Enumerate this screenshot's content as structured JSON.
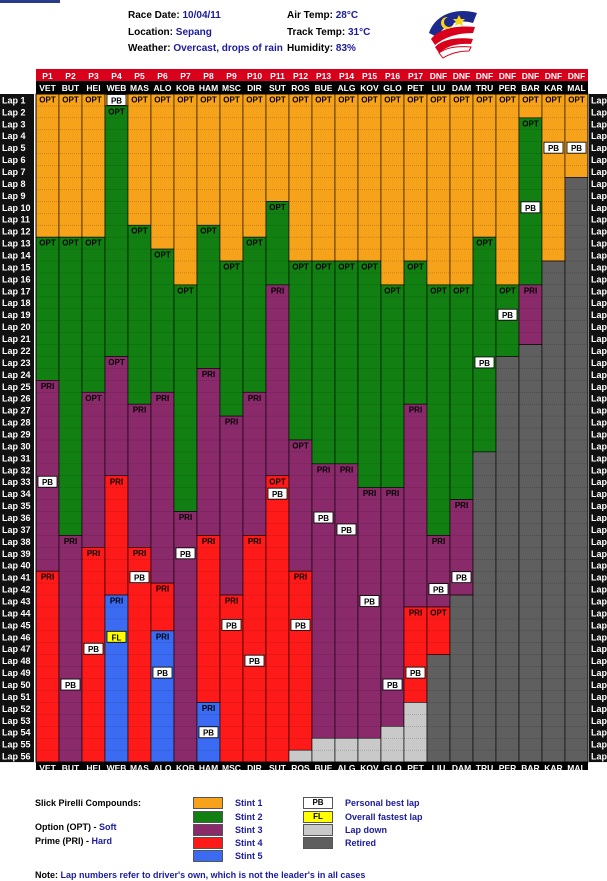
{
  "header": {
    "race_date_label": "Race Date:",
    "race_date": "10/04/11",
    "location_label": "Location:",
    "location": "Sepang",
    "weather_label": "Weather:",
    "weather": "Overcast, drops of rain",
    "air_temp_label": "Air Temp:",
    "air_temp": "28°C",
    "track_temp_label": "Track Temp:",
    "track_temp": "31°C",
    "humidity_label": "Humidity:",
    "humidity": "83%"
  },
  "legend": {
    "compounds_title": "Slick Pirelli Compounds:",
    "option_label": "Option (OPT) - ",
    "option_value": "Soft",
    "prime_label": "Prime (PRI) - ",
    "prime_value": "Hard",
    "stints": [
      "Stint 1",
      "Stint 2",
      "Stint 3",
      "Stint 4",
      "Stint 5"
    ],
    "markers": [
      {
        "badge": "PB",
        "label": "Personal best lap"
      },
      {
        "badge": "FL",
        "label": "Overall fastest lap"
      },
      {
        "badge": "",
        "label": "Lap down"
      },
      {
        "badge": "",
        "label": "Retired"
      }
    ]
  },
  "note": {
    "label": "Note: ",
    "text": "Lap numbers refer to driver's own, which is not the leader's in all cases"
  },
  "colors": {
    "stint1": "#f7a21b",
    "stint2": "#127f12",
    "stint3": "#8a2a6a",
    "stint4": "#ff1a1a",
    "stint5": "#3b6bf2",
    "lapdown": "#c9c9c9",
    "retired": "#5f5f5f",
    "header_bg": "#d9001b",
    "lap_col": "#111111"
  },
  "chart_data": {
    "type": "table",
    "title": "",
    "total_laps": 56,
    "lap_prefix": "Lap ",
    "positions": [
      "P1",
      "P2",
      "P3",
      "P4",
      "P5",
      "P6",
      "P7",
      "P8",
      "P9",
      "P10",
      "P11",
      "P12",
      "P13",
      "P14",
      "P15",
      "P16",
      "P17",
      "DNF",
      "DNF",
      "DNF",
      "DNF",
      "DNF",
      "DNF",
      "DNF"
    ],
    "drivers": [
      "VET",
      "BUT",
      "HEI",
      "WEB",
      "MAS",
      "ALO",
      "KOB",
      "HAM",
      "MSC",
      "DIR",
      "SUT",
      "ROS",
      "BUE",
      "ALG",
      "KOV",
      "GLO",
      "PET",
      "LIU",
      "DAM",
      "TRU",
      "PER",
      "BAR",
      "KAR",
      "MAL"
    ],
    "compound_labels": {
      "option": "OPT",
      "prime": "PRI"
    },
    "rows": [
      {
        "driver": "VET",
        "stints": [
          {
            "c": "OPT",
            "laps": [
              1,
              12
            ]
          },
          {
            "c": "OPT",
            "laps": [
              13,
              24
            ]
          },
          {
            "c": "PRI",
            "laps": [
              25,
              40
            ]
          },
          {
            "c": "PRI",
            "laps": [
              41,
              56
            ]
          }
        ],
        "pb": [
          33
        ],
        "fl": [],
        "lapdown": null,
        "retired": null
      },
      {
        "driver": "BUT",
        "stints": [
          {
            "c": "OPT",
            "laps": [
              1,
              12
            ]
          },
          {
            "c": "OPT",
            "laps": [
              13,
              37
            ]
          },
          {
            "c": "PRI",
            "laps": [
              38,
              56
            ]
          }
        ],
        "pb": [
          50
        ],
        "fl": [],
        "lapdown": null,
        "retired": null
      },
      {
        "driver": "HEI",
        "stints": [
          {
            "c": "OPT",
            "laps": [
              1,
              12
            ]
          },
          {
            "c": "OPT",
            "laps": [
              13,
              25
            ]
          },
          {
            "c": "OPT",
            "laps": [
              26,
              38
            ]
          },
          {
            "c": "PRI",
            "laps": [
              39,
              56
            ]
          }
        ],
        "pb": [
          47
        ],
        "fl": [],
        "lapdown": null,
        "retired": null
      },
      {
        "driver": "WEB",
        "stints": [
          {
            "c": "OPT",
            "laps": [
              1,
              1
            ]
          },
          {
            "c": "OPT",
            "laps": [
              2,
              22
            ]
          },
          {
            "c": "OPT",
            "laps": [
              23,
              32
            ]
          },
          {
            "c": "PRI",
            "laps": [
              33,
              42
            ]
          },
          {
            "c": "PRI",
            "laps": [
              43,
              56
            ]
          }
        ],
        "pb": [
          1
        ],
        "fl": [
          46
        ],
        "lapdown": null,
        "retired": null
      },
      {
        "driver": "MAS",
        "stints": [
          {
            "c": "OPT",
            "laps": [
              1,
              11
            ]
          },
          {
            "c": "OPT",
            "laps": [
              12,
              26
            ]
          },
          {
            "c": "PRI",
            "laps": [
              27,
              38
            ]
          },
          {
            "c": "PRI",
            "laps": [
              39,
              56
            ]
          }
        ],
        "pb": [
          41
        ],
        "fl": [],
        "lapdown": null,
        "retired": null
      },
      {
        "driver": "ALO",
        "stints": [
          {
            "c": "OPT",
            "laps": [
              1,
              13
            ]
          },
          {
            "c": "OPT",
            "laps": [
              14,
              25
            ]
          },
          {
            "c": "PRI",
            "laps": [
              26,
              41
            ]
          },
          {
            "c": "PRI",
            "laps": [
              42,
              45
            ]
          },
          {
            "c": "PRI",
            "laps": [
              46,
              56
            ]
          }
        ],
        "pb": [
          49
        ],
        "fl": [],
        "lapdown": null,
        "retired": null
      },
      {
        "driver": "KOB",
        "stints": [
          {
            "c": "OPT",
            "laps": [
              1,
              16
            ]
          },
          {
            "c": "OPT",
            "laps": [
              17,
              35
            ]
          },
          {
            "c": "PRI",
            "laps": [
              36,
              56
            ]
          }
        ],
        "pb": [
          39
        ],
        "fl": [],
        "lapdown": null,
        "retired": null
      },
      {
        "driver": "HAM",
        "stints": [
          {
            "c": "OPT",
            "laps": [
              1,
              11
            ]
          },
          {
            "c": "OPT",
            "laps": [
              12,
              23
            ]
          },
          {
            "c": "PRI",
            "laps": [
              24,
              37
            ]
          },
          {
            "c": "PRI",
            "laps": [
              38,
              51
            ]
          },
          {
            "c": "PRI",
            "laps": [
              52,
              56
            ]
          }
        ],
        "pb": [
          54
        ],
        "fl": [],
        "lapdown": null,
        "retired": null
      },
      {
        "driver": "MSC",
        "stints": [
          {
            "c": "OPT",
            "laps": [
              1,
              14
            ]
          },
          {
            "c": "OPT",
            "laps": [
              15,
              27
            ]
          },
          {
            "c": "PRI",
            "laps": [
              28,
              42
            ]
          },
          {
            "c": "PRI",
            "laps": [
              43,
              56
            ]
          }
        ],
        "pb": [
          45
        ],
        "fl": [],
        "lapdown": null,
        "retired": null
      },
      {
        "driver": "DIR",
        "stints": [
          {
            "c": "OPT",
            "laps": [
              1,
              12
            ]
          },
          {
            "c": "OPT",
            "laps": [
              13,
              25
            ]
          },
          {
            "c": "PRI",
            "laps": [
              26,
              37
            ]
          },
          {
            "c": "PRI",
            "laps": [
              38,
              56
            ]
          }
        ],
        "pb": [
          48
        ],
        "fl": [],
        "lapdown": null,
        "retired": null
      },
      {
        "driver": "SUT",
        "stints": [
          {
            "c": "OPT",
            "laps": [
              1,
              9
            ]
          },
          {
            "c": "OPT",
            "laps": [
              10,
              16
            ]
          },
          {
            "c": "PRI",
            "laps": [
              17,
              32
            ]
          },
          {
            "c": "OPT",
            "laps": [
              33,
              56
            ]
          }
        ],
        "pb": [
          34
        ],
        "fl": [],
        "lapdown": null,
        "retired": null
      },
      {
        "driver": "ROS",
        "stints": [
          {
            "c": "OPT",
            "laps": [
              1,
              14
            ]
          },
          {
            "c": "OPT",
            "laps": [
              15,
              29
            ]
          },
          {
            "c": "OPT",
            "laps": [
              30,
              40
            ]
          },
          {
            "c": "PRI",
            "laps": [
              41,
              56
            ]
          }
        ],
        "pb": [
          45
        ],
        "fl": [],
        "lapdown": [
          56,
          56
        ],
        "retired": null
      },
      {
        "driver": "BUE",
        "stints": [
          {
            "c": "OPT",
            "laps": [
              1,
              14
            ]
          },
          {
            "c": "OPT",
            "laps": [
              15,
              31
            ]
          },
          {
            "c": "PRI",
            "laps": [
              32,
              56
            ]
          }
        ],
        "pb": [
          36
        ],
        "fl": [],
        "lapdown": [
          55,
          56
        ],
        "retired": null
      },
      {
        "driver": "ALG",
        "stints": [
          {
            "c": "OPT",
            "laps": [
              1,
              14
            ]
          },
          {
            "c": "OPT",
            "laps": [
              15,
              31
            ]
          },
          {
            "c": "PRI",
            "laps": [
              32,
              56
            ]
          }
        ],
        "pb": [
          37
        ],
        "fl": [],
        "lapdown": [
          55,
          56
        ],
        "retired": null
      },
      {
        "driver": "KOV",
        "stints": [
          {
            "c": "OPT",
            "laps": [
              1,
              14
            ]
          },
          {
            "c": "OPT",
            "laps": [
              15,
              33
            ]
          },
          {
            "c": "PRI",
            "laps": [
              34,
              56
            ]
          }
        ],
        "pb": [
          43
        ],
        "fl": [],
        "lapdown": [
          55,
          56
        ],
        "retired": null
      },
      {
        "driver": "GLO",
        "stints": [
          {
            "c": "OPT",
            "laps": [
              1,
              16
            ]
          },
          {
            "c": "OPT",
            "laps": [
              17,
              33
            ]
          },
          {
            "c": "PRI",
            "laps": [
              34,
              56
            ]
          }
        ],
        "pb": [
          50
        ],
        "fl": [],
        "lapdown": [
          54,
          56
        ],
        "retired": null
      },
      {
        "driver": "PET",
        "stints": [
          {
            "c": "OPT",
            "laps": [
              1,
              14
            ]
          },
          {
            "c": "OPT",
            "laps": [
              15,
              26
            ]
          },
          {
            "c": "PRI",
            "laps": [
              27,
              43
            ]
          },
          {
            "c": "PRI",
            "laps": [
              44,
              56
            ]
          }
        ],
        "pb": [
          49
        ],
        "fl": [],
        "lapdown": [
          52,
          56
        ],
        "retired": null
      },
      {
        "driver": "LIU",
        "stints": [
          {
            "c": "OPT",
            "laps": [
              1,
              16
            ]
          },
          {
            "c": "OPT",
            "laps": [
              17,
              37
            ]
          },
          {
            "c": "PRI",
            "laps": [
              38,
              43
            ]
          },
          {
            "c": "OPT",
            "laps": [
              44,
              47
            ]
          }
        ],
        "pb": [
          42
        ],
        "fl": [],
        "lapdown": null,
        "retired": [
          48,
          56
        ]
      },
      {
        "driver": "DAM",
        "stints": [
          {
            "c": "OPT",
            "laps": [
              1,
              16
            ]
          },
          {
            "c": "OPT",
            "laps": [
              17,
              34
            ]
          },
          {
            "c": "PRI",
            "laps": [
              35,
              42
            ]
          }
        ],
        "pb": [
          41
        ],
        "fl": [],
        "lapdown": null,
        "retired": [
          43,
          56
        ]
      },
      {
        "driver": "TRU",
        "stints": [
          {
            "c": "OPT",
            "laps": [
              1,
              12
            ]
          },
          {
            "c": "OPT",
            "laps": [
              13,
              30
            ]
          }
        ],
        "pb": [
          23
        ],
        "fl": [],
        "lapdown": null,
        "retired": [
          31,
          56
        ]
      },
      {
        "driver": "PER",
        "stints": [
          {
            "c": "OPT",
            "laps": [
              1,
              16
            ]
          },
          {
            "c": "OPT",
            "laps": [
              17,
              22
            ]
          }
        ],
        "pb": [
          19
        ],
        "fl": [],
        "lapdown": null,
        "retired": [
          23,
          56
        ]
      },
      {
        "driver": "BAR",
        "stints": [
          {
            "c": "OPT",
            "laps": [
              1,
              2
            ]
          },
          {
            "c": "OPT",
            "laps": [
              3,
              16
            ]
          },
          {
            "c": "PRI",
            "laps": [
              17,
              21
            ]
          }
        ],
        "pb": [
          10
        ],
        "fl": [],
        "lapdown": null,
        "retired": [
          22,
          56
        ]
      },
      {
        "driver": "KAR",
        "stints": [
          {
            "c": "OPT",
            "laps": [
              1,
              14
            ]
          }
        ],
        "pb": [
          5
        ],
        "fl": [],
        "lapdown": null,
        "retired": [
          15,
          56
        ]
      },
      {
        "driver": "MAL",
        "stints": [
          {
            "c": "OPT",
            "laps": [
              1,
              7
            ]
          }
        ],
        "pb": [
          5
        ],
        "fl": [],
        "lapdown": null,
        "retired": [
          8,
          56
        ]
      }
    ]
  }
}
